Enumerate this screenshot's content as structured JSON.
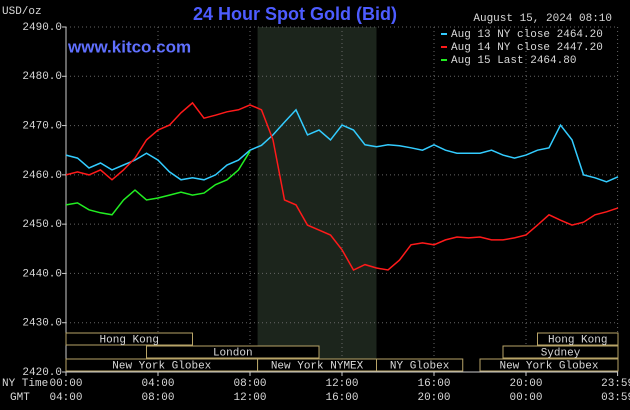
{
  "chart_data": {
    "type": "line",
    "title": "24 Hour Spot Gold (Bid)",
    "site": "www.kitco.com",
    "timestamp": "August 15, 2024 08:10",
    "y_label": "USD/oz",
    "x_label": "NY Time",
    "x2_label": "GMT",
    "x": [
      0,
      0.5,
      1,
      1.5,
      2,
      2.5,
      3,
      3.5,
      4,
      4.5,
      5,
      5.5,
      6,
      6.5,
      7,
      7.5,
      8,
      8.5,
      9,
      9.5,
      10,
      10.5,
      11,
      11.5,
      12,
      12.5,
      13,
      13.5,
      14,
      14.5,
      15,
      15.5,
      16,
      16.5,
      17,
      17.5,
      18,
      18.5,
      19,
      19.5,
      20,
      20.5,
      21,
      21.5,
      22,
      22.5,
      23,
      23.5,
      24
    ],
    "series": [
      {
        "name": "Aug 13 NY close 2464.20",
        "color": "#33ccff",
        "values": [
          2464.0,
          2463.4,
          2461.4,
          2462.4,
          2461.0,
          2462.0,
          2463.0,
          2464.4,
          2463.0,
          2460.6,
          2459.0,
          2459.4,
          2459.0,
          2460.0,
          2462.0,
          2463.0,
          2465.0,
          2466.0,
          2468.1,
          2470.7,
          2473.2,
          2468.1,
          2469.1,
          2467.1,
          2470.1,
          2469.1,
          2466.1,
          2465.7,
          2466.1,
          2465.9,
          2465.5,
          2465.0,
          2466.1,
          2465.0,
          2464.4,
          2464.4,
          2464.4,
          2465.0,
          2464.0,
          2463.4,
          2464.0,
          2465.0,
          2465.5,
          2470.1,
          2467.1,
          2460.0,
          2459.4,
          2458.6,
          2459.6
        ]
      },
      {
        "name": "Aug 14 NY close 2447.20",
        "color": "#ff1a1a",
        "values": [
          2460.0,
          2460.6,
          2460.0,
          2461.0,
          2459.0,
          2461.0,
          2463.4,
          2467.1,
          2469.1,
          2470.1,
          2472.6,
          2474.6,
          2471.5,
          2472.1,
          2472.8,
          2473.2,
          2474.2,
          2473.2,
          2467.1,
          2454.9,
          2453.9,
          2449.8,
          2448.8,
          2447.8,
          2444.8,
          2440.7,
          2441.8,
          2441.1,
          2440.7,
          2442.7,
          2445.8,
          2446.2,
          2445.8,
          2446.8,
          2447.4,
          2447.2,
          2447.4,
          2446.8,
          2446.8,
          2447.2,
          2447.8,
          2449.8,
          2451.9,
          2450.8,
          2449.8,
          2450.4,
          2451.9,
          2452.5,
          2453.3
        ]
      },
      {
        "name": "Aug 15 Last 2464.80",
        "color": "#22ee22",
        "values": [
          2453.9,
          2454.3,
          2452.9,
          2452.3,
          2451.9,
          2454.9,
          2456.9,
          2454.9,
          2455.3,
          2455.9,
          2456.5,
          2455.9,
          2456.3,
          2458.0,
          2459.0,
          2461.0,
          2464.8,
          null,
          null,
          null,
          null,
          null,
          null,
          null,
          null,
          null,
          null,
          null,
          null,
          null,
          null,
          null,
          null,
          null,
          null,
          null,
          null,
          null,
          null,
          null,
          null,
          null,
          null,
          null,
          null,
          null,
          null,
          null,
          null
        ]
      }
    ],
    "xlim": [
      0,
      24
    ],
    "xticks": [
      {
        "value": 0,
        "label": "00:00"
      },
      {
        "value": 4,
        "label": "04:00"
      },
      {
        "value": 8,
        "label": "08:00"
      },
      {
        "value": 12,
        "label": "12:00"
      },
      {
        "value": 16,
        "label": "16:00"
      },
      {
        "value": 20,
        "label": "20:00"
      },
      {
        "value": 23.983,
        "label": "23:59"
      }
    ],
    "x2_tick_labels": [
      "04:00",
      "08:00",
      "12:00",
      "16:00",
      "20:00",
      "00:00",
      "03:59"
    ],
    "ylim": [
      2420,
      2490
    ],
    "yticks": [
      {
        "value": 2420,
        "label": "2420.0"
      },
      {
        "value": 2430,
        "label": "2430.0"
      },
      {
        "value": 2440,
        "label": "2440.0"
      },
      {
        "value": 2450,
        "label": "2450.0"
      },
      {
        "value": 2460,
        "label": "2460.0"
      },
      {
        "value": 2470,
        "label": "2470.0"
      },
      {
        "value": 2480,
        "label": "2480.0"
      },
      {
        "value": 2490,
        "label": "2490.0"
      }
    ],
    "grid": true,
    "sessions": [
      [
        {
          "label": "Hong Kong",
          "start": 0,
          "end": 5.5
        },
        {
          "label": "Hong Kong",
          "start": 20.5,
          "end": 24
        }
      ],
      [
        {
          "label": "London",
          "start": 3.5,
          "end": 11
        },
        {
          "label": "Sydney",
          "start": 19,
          "end": 24
        }
      ],
      [
        {
          "label": "New York Globex",
          "start": 0,
          "end": 8.33
        },
        {
          "label": "New York NYMEX",
          "start": 8.33,
          "end": 13.5
        },
        {
          "label": "NY Globex",
          "start": 13.5,
          "end": 17.25
        },
        {
          "label": "New York Globex",
          "start": 18,
          "end": 24
        }
      ]
    ]
  }
}
